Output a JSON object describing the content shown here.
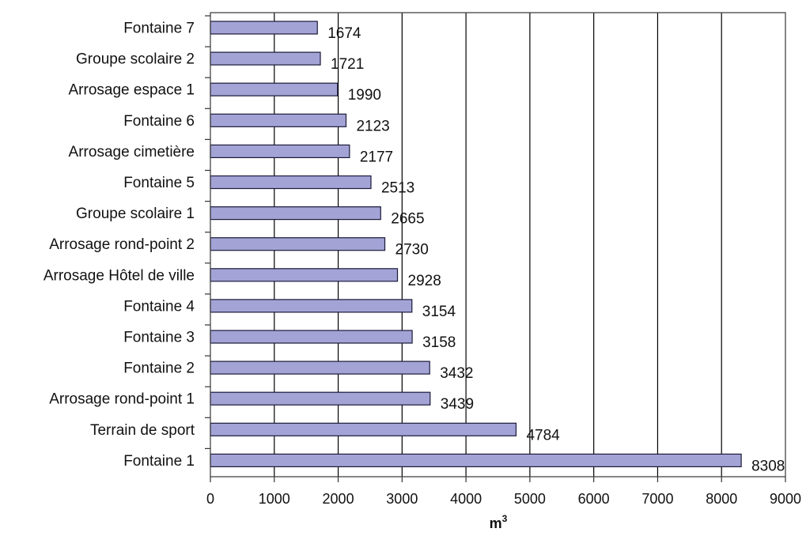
{
  "chart_data": {
    "type": "bar",
    "orientation": "horizontal",
    "categories": [
      "Fontaine 7",
      "Groupe scolaire 2",
      "Arrosage espace 1",
      "Fontaine 6",
      "Arrosage cimetière",
      "Fontaine 5",
      "Groupe scolaire 1",
      "Arrosage rond-point 2",
      "Arrosage Hôtel de ville",
      "Fontaine 4",
      "Fontaine 3",
      "Fontaine 2",
      "Arrosage rond-point 1",
      "Terrain de sport",
      "Fontaine 1"
    ],
    "values": [
      1674,
      1721,
      1990,
      2123,
      2177,
      2513,
      2665,
      2730,
      2928,
      3154,
      3158,
      3432,
      3439,
      4784,
      8308
    ],
    "title": "",
    "xlabel": "m",
    "xlabel_superscript": "3",
    "ylabel": "",
    "xlim": [
      0,
      9000
    ],
    "x_ticks": [
      0,
      1000,
      2000,
      3000,
      4000,
      5000,
      6000,
      7000,
      8000,
      9000
    ],
    "grid": "vertical",
    "legend": "none",
    "bar_color": "#a3a3d6",
    "bar_stroke": "#1a1a3a",
    "grid_color": "#000000"
  }
}
